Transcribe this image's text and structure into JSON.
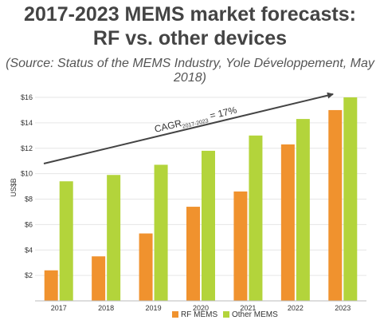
{
  "header": {
    "title_line1": "2017-2023 MEMS market forecasts:",
    "title_line2": "RF vs. other devices",
    "source": "(Source: Status of the MEMS Industry, Yole Développement, May 2018)"
  },
  "chart_data": {
    "type": "bar",
    "categories": [
      "2017",
      "2018",
      "2019",
      "2020",
      "2021",
      "2022",
      "2023"
    ],
    "series": [
      {
        "name": "RF MEMS",
        "color": "#f0922e",
        "values": [
          2.4,
          3.5,
          5.3,
          7.4,
          8.6,
          12.3,
          15.0
        ]
      },
      {
        "name": "Other MEMS",
        "color": "#b3d43b",
        "values": [
          9.4,
          9.9,
          10.7,
          11.8,
          13.0,
          14.3,
          16.0
        ]
      }
    ],
    "ylabel": "US$B",
    "ylim": [
      0,
      16
    ],
    "yticks": [
      "$2",
      "$4",
      "$6",
      "$8",
      "$10",
      "$12",
      "$14",
      "$16"
    ],
    "legend_position": "bottom",
    "annotation": {
      "text": "CAGR",
      "subscript": "2017-2023",
      "suffix": " = 17%"
    }
  }
}
